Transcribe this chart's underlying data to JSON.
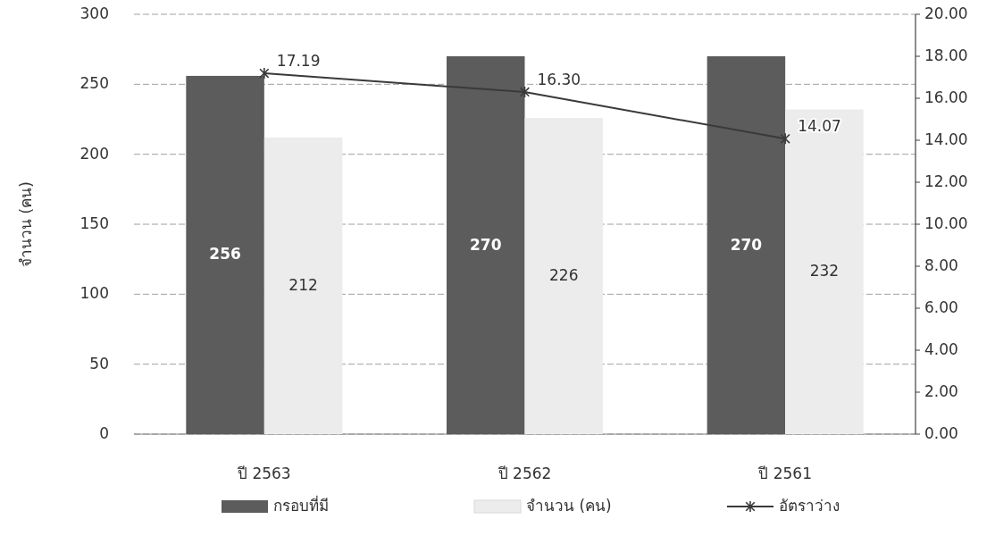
{
  "chart_data": {
    "type": "bar",
    "ylabel": "จำนวน (คน)",
    "categories": [
      "ปี 2563",
      "ปี 2562",
      "ปี 2561"
    ],
    "series": [
      {
        "name": "กรอบที่มี",
        "color": "#5c5c5c",
        "values": [
          256,
          270,
          270
        ],
        "value_labels": [
          "256",
          "270",
          "270"
        ]
      },
      {
        "name": "จำนวน (คน)",
        "color": "#ececec",
        "values": [
          212,
          226,
          232
        ],
        "value_labels": [
          "212",
          "226",
          "232"
        ]
      },
      {
        "name": "อัตราว่าง",
        "type": "line",
        "axis": "y2",
        "color": "#3a3a3a",
        "marker": "cross",
        "values": [
          17.19,
          16.3,
          14.07
        ],
        "value_labels": [
          "17.19",
          "16.30",
          "14.07"
        ]
      }
    ],
    "ylim": [
      0,
      300
    ],
    "yticks": [
      0,
      50,
      100,
      150,
      200,
      250,
      300
    ],
    "y2lim": [
      0,
      20
    ],
    "y2ticks": [
      {
        "value": 0,
        "label": "0.00"
      },
      {
        "value": 2,
        "label": "2.00"
      },
      {
        "value": 4,
        "label": "4.00"
      },
      {
        "value": 6,
        "label": "6.00"
      },
      {
        "value": 8,
        "label": "8.00"
      },
      {
        "value": 10,
        "label": "10.00"
      },
      {
        "value": 12,
        "label": "12.00"
      },
      {
        "value": 14,
        "label": "14.00"
      },
      {
        "value": 16,
        "label": "16.00"
      },
      {
        "value": 18,
        "label": "18.00"
      },
      {
        "value": 20,
        "label": "20.00"
      }
    ],
    "grid": "y",
    "legend": "bottom"
  }
}
